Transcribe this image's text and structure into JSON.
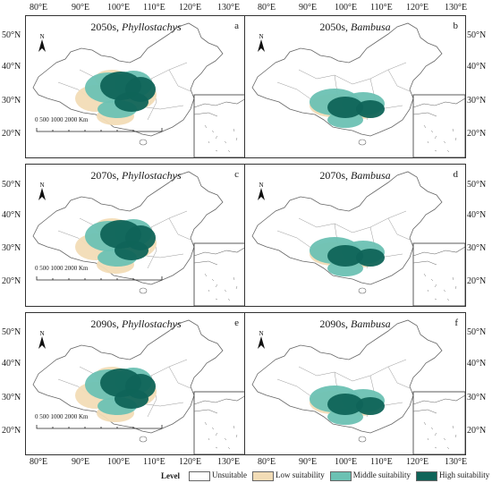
{
  "colors": {
    "unsuitable": "#ffffff",
    "low": "#f2dcb6",
    "middle": "#6cc1b3",
    "high": "#0f6459",
    "outline": "#666666"
  },
  "top_axis": [
    "80°E",
    "90°E",
    "100°E",
    "110°E",
    "120°E",
    "130°E"
  ],
  "bottom_axis": [
    "80°E",
    "90°E",
    "100°E",
    "110°E",
    "120°E",
    "130°E"
  ],
  "lat_labels": [
    "50°N",
    "40°N",
    "30°N",
    "20°N"
  ],
  "panels": [
    {
      "period": "2050s",
      "genus": "Phyllostachys",
      "letter": "a"
    },
    {
      "period": "2050s",
      "genus": "Bambusa",
      "letter": "b"
    },
    {
      "period": "2070s",
      "genus": "Phyllostachys",
      "letter": "c"
    },
    {
      "period": "2070s",
      "genus": "Bambusa",
      "letter": "d"
    },
    {
      "period": "2090s",
      "genus": "Phyllostachys",
      "letter": "e"
    },
    {
      "period": "2090s",
      "genus": "Bambusa",
      "letter": "f"
    }
  ],
  "north_label": "N",
  "scale_bar": "0  500 1000      2000 Km",
  "legend": {
    "title": "Level",
    "items": [
      "Unsuitable",
      "Low suitability",
      "Middle suitability",
      "High suitability"
    ]
  }
}
